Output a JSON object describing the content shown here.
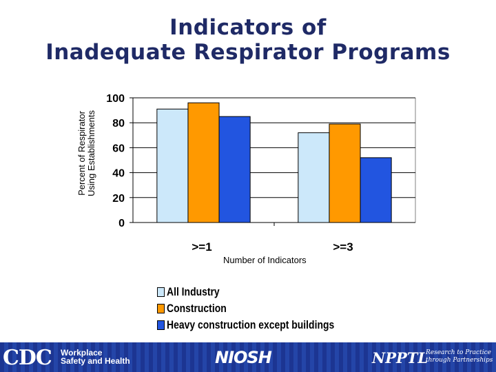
{
  "title_lines": [
    "Indicators of",
    "Inadequate Respirator Programs"
  ],
  "chart_data": {
    "type": "bar",
    "categories": [
      ">=1",
      ">=3"
    ],
    "series": [
      {
        "name": "All Industry",
        "values": [
          91,
          72
        ],
        "color": "#cce8fa"
      },
      {
        "name": "Construction",
        "values": [
          96,
          79
        ],
        "color": "#ff9900"
      },
      {
        "name": "Heavy construction except buildings",
        "values": [
          85,
          52
        ],
        "color": "#2255e0"
      }
    ],
    "xlabel": "Number of Indicators",
    "ylabel_lines": [
      "Percent of Respirator",
      "Using Establishments"
    ],
    "ylim": [
      0,
      100
    ],
    "yticks": [
      "0",
      "20",
      "40",
      "60",
      "80",
      "100"
    ],
    "grid": true,
    "legend_placement": "bottom"
  },
  "footer": {
    "cdc": "CDC",
    "workplace_lines": [
      "Workplace",
      "Safety and Health"
    ],
    "niosh": "NIOSH",
    "npptl": "NPPTL",
    "tagline_lines": [
      "Research to Practice",
      "through Partnerships"
    ]
  }
}
